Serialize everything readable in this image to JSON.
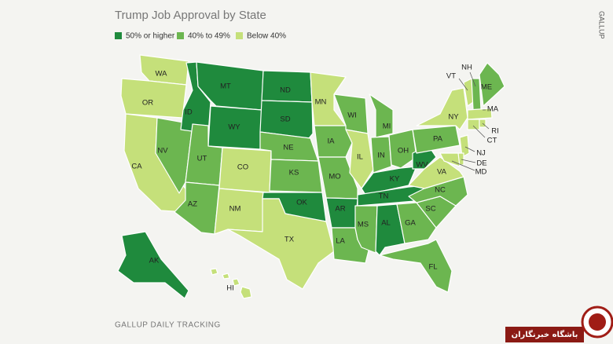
{
  "title": "Trump Job Approval by State",
  "legend": [
    {
      "label": "50% or higher",
      "color": "#1f8a3d"
    },
    {
      "label": "40% to 49%",
      "color": "#6cb650"
    },
    {
      "label": "Below 40%",
      "color": "#c5e07a"
    }
  ],
  "states": [
    {
      "label": "WA",
      "group": 2
    },
    {
      "label": "OR",
      "group": 2
    },
    {
      "label": "CA",
      "group": 2
    },
    {
      "label": "NV",
      "group": 1
    },
    {
      "label": "ID",
      "group": 0
    },
    {
      "label": "MT",
      "group": 0
    },
    {
      "label": "WY",
      "group": 0
    },
    {
      "label": "UT",
      "group": 1
    },
    {
      "label": "AZ",
      "group": 1
    },
    {
      "label": "CO",
      "group": 2
    },
    {
      "label": "NM",
      "group": 2
    },
    {
      "label": "ND",
      "group": 0
    },
    {
      "label": "SD",
      "group": 0
    },
    {
      "label": "NE",
      "group": 1
    },
    {
      "label": "KS",
      "group": 1
    },
    {
      "label": "OK",
      "group": 0
    },
    {
      "label": "TX",
      "group": 2
    },
    {
      "label": "MN",
      "group": 2
    },
    {
      "label": "IA",
      "group": 1
    },
    {
      "label": "MO",
      "group": 1
    },
    {
      "label": "AR",
      "group": 0
    },
    {
      "label": "LA",
      "group": 1
    },
    {
      "label": "WI",
      "group": 1
    },
    {
      "label": "IL",
      "group": 2
    },
    {
      "label": "MI",
      "group": 1
    },
    {
      "label": "IN",
      "group": 1
    },
    {
      "label": "OH",
      "group": 1
    },
    {
      "label": "KY",
      "group": 0
    },
    {
      "label": "TN",
      "group": 0
    },
    {
      "label": "MS",
      "group": 1
    },
    {
      "label": "AL",
      "group": 0
    },
    {
      "label": "GA",
      "group": 1
    },
    {
      "label": "FL",
      "group": 1
    },
    {
      "label": "SC",
      "group": 1
    },
    {
      "label": "NC",
      "group": 1
    },
    {
      "label": "VA",
      "group": 2
    },
    {
      "label": "WV",
      "group": 0
    },
    {
      "label": "PA",
      "group": 1
    },
    {
      "label": "NY",
      "group": 2
    },
    {
      "label": "VT",
      "group": 2
    },
    {
      "label": "NH",
      "group": 1
    },
    {
      "label": "ME",
      "group": 1
    },
    {
      "label": "MA",
      "group": 2
    },
    {
      "label": "CT",
      "group": 2
    },
    {
      "label": "RI",
      "group": 2
    },
    {
      "label": "NJ",
      "group": 2
    },
    {
      "label": "DE",
      "group": 2
    },
    {
      "label": "MD",
      "group": 2
    },
    {
      "label": "AK",
      "group": 0
    },
    {
      "label": "HI",
      "group": 2
    }
  ],
  "source": "GALLUP DAILY TRACKING",
  "brand": "GALLUP",
  "watermark": "باشگاه خبرنگاران"
}
